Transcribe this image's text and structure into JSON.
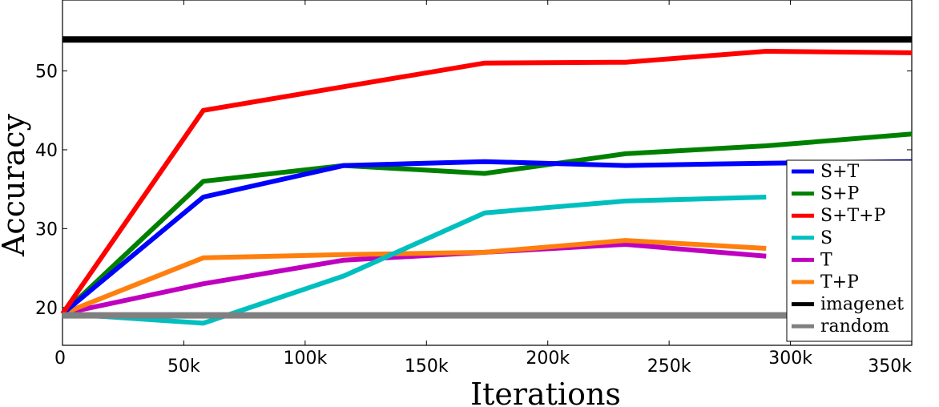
{
  "chart_data": {
    "type": "line",
    "title": "",
    "xlabel": "Iterations",
    "ylabel": "Accuracy",
    "xlim": [
      0,
      350000
    ],
    "ylim": [
      15.2,
      59
    ],
    "xticks": [
      0,
      50000,
      100000,
      150000,
      200000,
      250000,
      300000,
      350000
    ],
    "xtick_labels": [
      "0",
      "50k",
      "100k",
      "150k",
      "200k",
      "250k",
      "300k",
      "350k"
    ],
    "yticks": [
      20,
      30,
      40,
      50
    ],
    "ytick_labels": [
      "20",
      "30",
      "40",
      "50"
    ],
    "grid": false,
    "legend_position": "right",
    "series": [
      {
        "name": "S+T",
        "color": "#0000ff",
        "x": [
          0,
          58000,
          116000,
          174000,
          232000,
          290000,
          350000
        ],
        "y": [
          19.2,
          34,
          38,
          38.5,
          38,
          38.3,
          38.5
        ]
      },
      {
        "name": "S+P",
        "color": "#008000",
        "x": [
          0,
          58000,
          116000,
          174000,
          232000,
          290000,
          350000
        ],
        "y": [
          19.2,
          36,
          38,
          37,
          39.5,
          40.5,
          42
        ]
      },
      {
        "name": "S+T+P",
        "color": "#ff0000",
        "x": [
          0,
          58000,
          116000,
          174000,
          232000,
          290000,
          350000
        ],
        "y": [
          19.2,
          45,
          48,
          51,
          51.1,
          52.5,
          52.3
        ]
      },
      {
        "name": "S",
        "color": "#00bfbf",
        "x": [
          0,
          58000,
          116000,
          174000,
          232000,
          290000
        ],
        "y": [
          19.2,
          18,
          24,
          32,
          33.5,
          34
        ]
      },
      {
        "name": "T",
        "color": "#bf00bf",
        "x": [
          0,
          58000,
          116000,
          174000,
          232000,
          290000
        ],
        "y": [
          19.2,
          23,
          26,
          27,
          28,
          26.5
        ]
      },
      {
        "name": "T+P",
        "color": "#ff7f0e",
        "x": [
          0,
          58000,
          116000,
          174000,
          232000,
          290000
        ],
        "y": [
          19.2,
          26.3,
          26.7,
          27,
          28.5,
          27.5
        ]
      },
      {
        "name": "imagenet",
        "color": "#000000",
        "x": [
          0,
          350000
        ],
        "y": [
          54,
          54
        ]
      },
      {
        "name": "random",
        "color": "#808080",
        "x": [
          0,
          350000
        ],
        "y": [
          19,
          19
        ]
      }
    ]
  }
}
